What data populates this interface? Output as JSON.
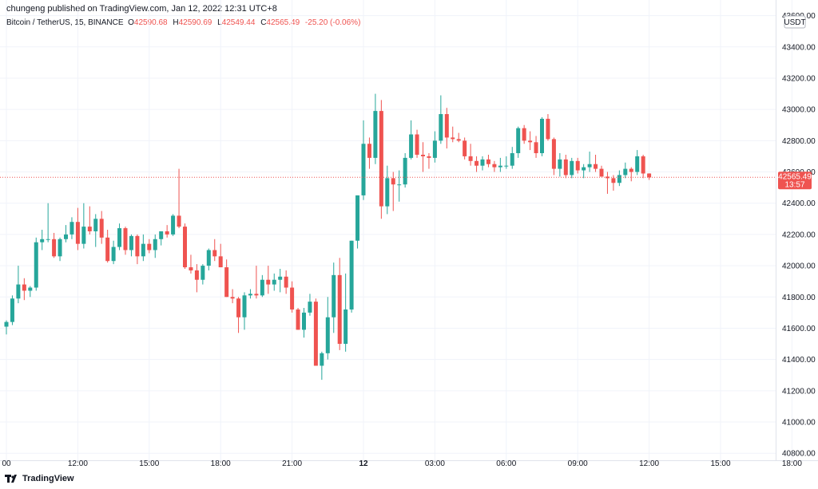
{
  "header": {
    "published": "chungeng published on TradingView.com, Jan 12, 2022 12:31 UTC+8",
    "symbol": "Bitcoin / TetherUS, 15, BINANCE",
    "o_label": "O",
    "o_value": "42590.68",
    "h_label": "H",
    "h_value": "42590.69",
    "l_label": "L",
    "l_value": "42549.44",
    "c_label": "C",
    "c_value": "42565.49",
    "change": "-25.20 (-0.06%)"
  },
  "footer": {
    "brand": "TradingView",
    "logo_icon": "tradingview-logo-icon"
  },
  "chart_data": {
    "type": "candlestick",
    "currency": "USDT",
    "ylim": [
      40750,
      43700
    ],
    "y_ticks": [
      43600,
      43400,
      43200,
      43000,
      42800,
      42600,
      42400,
      42200,
      42000,
      41800,
      41600,
      41400,
      41200,
      41000,
      40800
    ],
    "y_tick_labels": [
      "43600.00",
      "43400.00",
      "43200.00",
      "43000.00",
      "42800.00",
      "42600.00",
      "42400.00",
      "42200.00",
      "42000.00",
      "41800.00",
      "41600.00",
      "41400.00",
      "41200.00",
      "41000.00",
      "40800.00"
    ],
    "x_tick_labels": [
      "00",
      "12:00",
      "15:00",
      "18:00",
      "21:00",
      "12",
      "03:00",
      "06:00",
      "09:00",
      "12:00",
      "15:00",
      "18:00"
    ],
    "x_tick_bars": [
      0,
      12,
      24,
      36,
      48,
      60,
      72,
      84,
      96,
      108,
      120,
      132
    ],
    "last_price": {
      "value": 42565.49,
      "label": "42565.49",
      "countdown": "13:57"
    },
    "colors": {
      "up": "#26a69a",
      "down": "#ef5350",
      "grid": "#f0f3fa",
      "text": "#131722"
    },
    "candles": [
      [
        41610,
        41650,
        41560,
        41640
      ],
      [
        41640,
        41810,
        41620,
        41790
      ],
      [
        41790,
        42000,
        41760,
        41880
      ],
      [
        41880,
        41920,
        41780,
        41840
      ],
      [
        41840,
        41870,
        41800,
        41860
      ],
      [
        41860,
        42180,
        41840,
        42150
      ],
      [
        42150,
        42230,
        42100,
        42170
      ],
      [
        42170,
        42400,
        42150,
        42170
      ],
      [
        42170,
        42210,
        42050,
        42060
      ],
      [
        42060,
        42180,
        42030,
        42170
      ],
      [
        42170,
        42260,
        42150,
        42200
      ],
      [
        42200,
        42310,
        42170,
        42280
      ],
      [
        42280,
        42370,
        42100,
        42140
      ],
      [
        42140,
        42400,
        42110,
        42250
      ],
      [
        42250,
        42380,
        42200,
        42220
      ],
      [
        42220,
        42330,
        42120,
        42300
      ],
      [
        42300,
        42350,
        42140,
        42180
      ],
      [
        42180,
        42230,
        42020,
        42030
      ],
      [
        42030,
        42160,
        42010,
        42120
      ],
      [
        42120,
        42270,
        42100,
        42240
      ],
      [
        42240,
        42250,
        42070,
        42100
      ],
      [
        42100,
        42200,
        42060,
        42190
      ],
      [
        42190,
        42200,
        42010,
        42060
      ],
      [
        42060,
        42200,
        42030,
        42140
      ],
      [
        42140,
        42170,
        42080,
        42100
      ],
      [
        42100,
        42200,
        42050,
        42170
      ],
      [
        42170,
        42220,
        42130,
        42220
      ],
      [
        42220,
        42260,
        42180,
        42200
      ],
      [
        42200,
        42330,
        42190,
        42320
      ],
      [
        42320,
        42620,
        42240,
        42250
      ],
      [
        42250,
        42270,
        41980,
        41990
      ],
      [
        41990,
        42070,
        41950,
        41970
      ],
      [
        41970,
        42010,
        41830,
        41910
      ],
      [
        41910,
        42010,
        41880,
        42000
      ],
      [
        42000,
        42110,
        41970,
        42100
      ],
      [
        42100,
        42170,
        42030,
        42060
      ],
      [
        42060,
        42140,
        41990,
        41990
      ],
      [
        41990,
        42040,
        41800,
        41800
      ],
      [
        41800,
        41850,
        41760,
        41790
      ],
      [
        41790,
        41800,
        41570,
        41670
      ],
      [
        41670,
        41830,
        41590,
        41810
      ],
      [
        41810,
        41850,
        41790,
        41820
      ],
      [
        41820,
        42000,
        41790,
        41810
      ],
      [
        41810,
        41940,
        41800,
        41910
      ],
      [
        41910,
        42000,
        41820,
        41880
      ],
      [
        41880,
        41950,
        41840,
        41910
      ],
      [
        41910,
        41980,
        41830,
        41930
      ],
      [
        41930,
        41970,
        41820,
        41860
      ],
      [
        41860,
        41900,
        41700,
        41720
      ],
      [
        41720,
        41730,
        41590,
        41590
      ],
      [
        41590,
        41730,
        41540,
        41700
      ],
      [
        41700,
        41820,
        41680,
        41770
      ],
      [
        41770,
        41790,
        41360,
        41360
      ],
      [
        41360,
        41450,
        41270,
        41440
      ],
      [
        41440,
        41800,
        41400,
        41670
      ],
      [
        41670,
        42020,
        41570,
        41940
      ],
      [
        41940,
        42050,
        41460,
        41500
      ],
      [
        41500,
        41950,
        41450,
        41720
      ],
      [
        41720,
        42160,
        41700,
        42160
      ],
      [
        42160,
        42450,
        42110,
        42450
      ],
      [
        42450,
        42930,
        42420,
        42780
      ],
      [
        42780,
        42820,
        42620,
        42690
      ],
      [
        42690,
        43100,
        42650,
        42990
      ],
      [
        42990,
        43060,
        42300,
        42380
      ],
      [
        42380,
        42640,
        42330,
        42560
      ],
      [
        42560,
        42600,
        42350,
        42520
      ],
      [
        42520,
        42610,
        42410,
        42520
      ],
      [
        42520,
        42720,
        42500,
        42690
      ],
      [
        42690,
        42930,
        42680,
        42840
      ],
      [
        42840,
        42870,
        42690,
        42710
      ],
      [
        42710,
        42790,
        42600,
        42700
      ],
      [
        42700,
        42720,
        42620,
        42690
      ],
      [
        42690,
        42860,
        42660,
        42800
      ],
      [
        42800,
        43090,
        42780,
        42970
      ],
      [
        42970,
        43010,
        42750,
        42820
      ],
      [
        42820,
        42890,
        42790,
        42810
      ],
      [
        42810,
        42850,
        42790,
        42800
      ],
      [
        42800,
        42820,
        42680,
        42700
      ],
      [
        42700,
        42780,
        42640,
        42670
      ],
      [
        42670,
        42700,
        42600,
        42640
      ],
      [
        42640,
        42700,
        42610,
        42680
      ],
      [
        42680,
        42710,
        42630,
        42650
      ],
      [
        42650,
        42670,
        42600,
        42630
      ],
      [
        42630,
        42690,
        42600,
        42640
      ],
      [
        42640,
        42700,
        42620,
        42640
      ],
      [
        42640,
        42760,
        42620,
        42720
      ],
      [
        42720,
        42890,
        42690,
        42880
      ],
      [
        42880,
        42900,
        42780,
        42800
      ],
      [
        42800,
        42860,
        42740,
        42790
      ],
      [
        42790,
        42830,
        42690,
        42720
      ],
      [
        42720,
        42950,
        42700,
        42940
      ],
      [
        42940,
        42970,
        42800,
        42810
      ],
      [
        42810,
        42820,
        42580,
        42620
      ],
      [
        42620,
        42720,
        42570,
        42680
      ],
      [
        42680,
        42710,
        42560,
        42580
      ],
      [
        42580,
        42690,
        42560,
        42670
      ],
      [
        42670,
        42690,
        42590,
        42610
      ],
      [
        42610,
        42650,
        42560,
        42630
      ],
      [
        42630,
        42730,
        42600,
        42650
      ],
      [
        42650,
        42710,
        42600,
        42620
      ],
      [
        42620,
        42640,
        42570,
        42570
      ],
      [
        42570,
        42600,
        42460,
        42560
      ],
      [
        42560,
        42580,
        42480,
        42530
      ],
      [
        42530,
        42610,
        42510,
        42580
      ],
      [
        42580,
        42660,
        42560,
        42620
      ],
      [
        42620,
        42630,
        42540,
        42600
      ],
      [
        42600,
        42740,
        42580,
        42700
      ],
      [
        42700,
        42710,
        42560,
        42590
      ],
      [
        42590,
        42591,
        42549,
        42565
      ]
    ]
  }
}
